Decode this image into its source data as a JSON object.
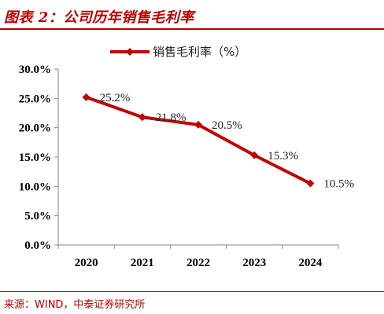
{
  "figure": {
    "title": "图表 2：公司历年销售毛利率",
    "source": "来源：WIND，中泰证券研究所"
  },
  "colors": {
    "accent": "#c00000",
    "series": "#c00000"
  },
  "chart_data": {
    "type": "line",
    "categories": [
      "2020",
      "2021",
      "2022",
      "2023",
      "2024"
    ],
    "series": [
      {
        "name": "销售毛利率（%）",
        "values": [
          25.2,
          21.8,
          20.5,
          15.3,
          10.5
        ]
      }
    ],
    "data_labels": [
      "25.2%",
      "21.8%",
      "20.5%",
      "15.3%",
      "10.5%"
    ],
    "y_ticks": [
      "0.0%",
      "5.0%",
      "10.0%",
      "15.0%",
      "20.0%",
      "25.0%",
      "30.0%"
    ],
    "ylim": [
      0,
      30
    ],
    "grid": false,
    "legend": "top-center",
    "marker": "diamond"
  }
}
